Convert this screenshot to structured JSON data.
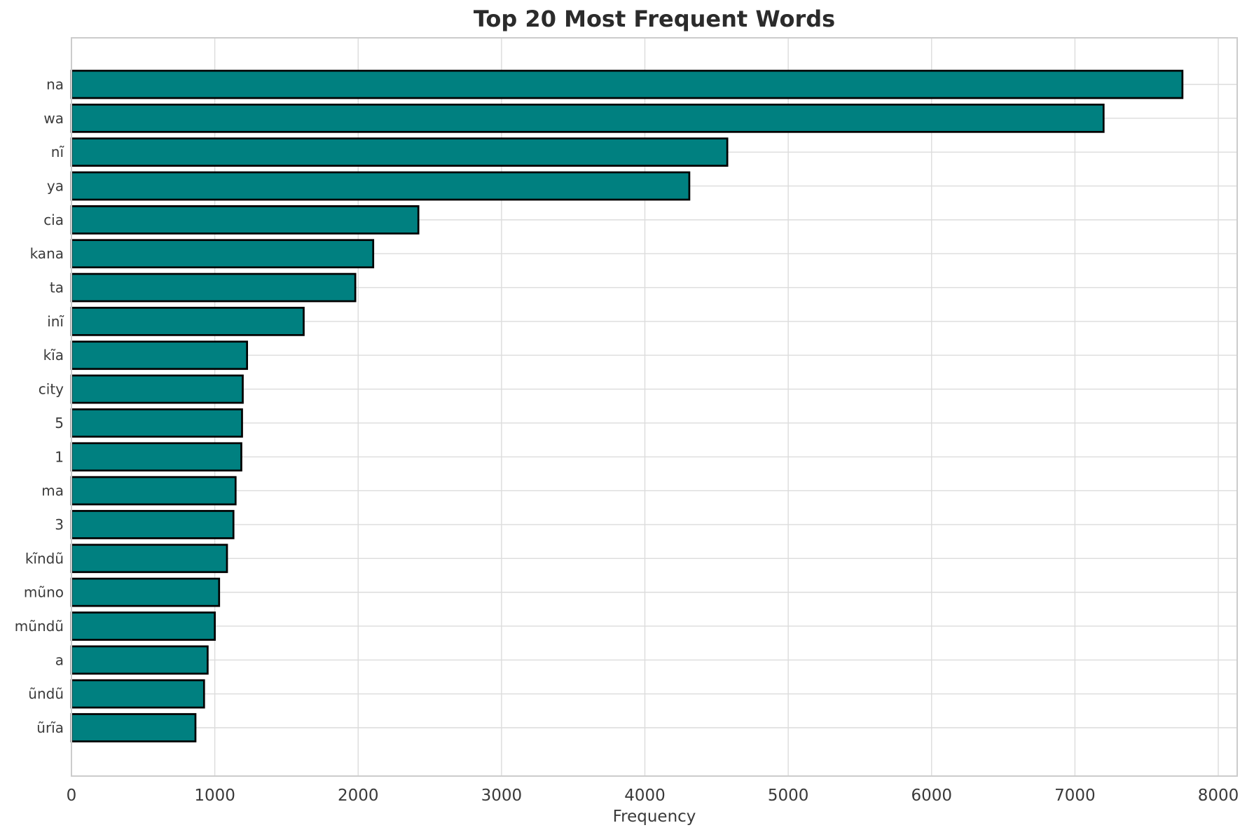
{
  "chart_data": {
    "type": "bar",
    "orientation": "horizontal",
    "title": "Top 20 Most Frequent Words",
    "xlabel": "Frequency",
    "ylabel": "",
    "categories": [
      "na",
      "wa",
      "nĩ",
      "ya",
      "cia",
      "kana",
      "ta",
      "inĩ",
      "kĩa",
      "city",
      "5",
      "1",
      "ma",
      "3",
      "kĩndũ",
      "mũno",
      "mũndũ",
      "a",
      "ũndũ",
      "ũrĩa"
    ],
    "values": [
      7750,
      7200,
      4575,
      4310,
      2420,
      2105,
      1980,
      1620,
      1225,
      1195,
      1190,
      1185,
      1145,
      1130,
      1085,
      1030,
      1000,
      950,
      925,
      865
    ],
    "x_ticks": [
      0,
      1000,
      2000,
      3000,
      4000,
      5000,
      6000,
      7000,
      8000
    ],
    "xlim": [
      0,
      8135
    ],
    "grid": true,
    "legend": false,
    "colors": {
      "bar_fill": "#008080",
      "bar_edge": "#000000",
      "grid_line": "#dcdcdc",
      "spine": "#cccccc",
      "title_text": "#2b2b2b",
      "tick_text": "#3a3a3a",
      "background": "#ffffff"
    }
  }
}
